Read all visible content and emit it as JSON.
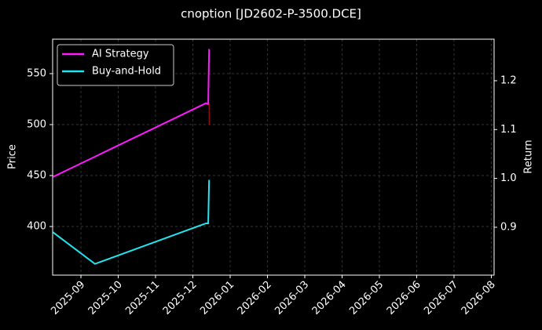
{
  "chart_data": {
    "type": "line",
    "title": "cnoption [JD2602-P-3500.DCE]",
    "y_label": "Price",
    "y2_label": "Return",
    "xlim": [
      2025.6035,
      2026.5895
    ],
    "xticks": [
      {
        "value": 2025.6667,
        "label": "2025-09"
      },
      {
        "value": 2025.75,
        "label": "2025-10"
      },
      {
        "value": 2025.8333,
        "label": "2025-11"
      },
      {
        "value": 2025.9167,
        "label": "2025-12"
      },
      {
        "value": 2026.0,
        "label": "2026-01"
      },
      {
        "value": 2026.0833,
        "label": "2026-02"
      },
      {
        "value": 2026.1667,
        "label": "2026-03"
      },
      {
        "value": 2026.25,
        "label": "2026-04"
      },
      {
        "value": 2026.3333,
        "label": "2026-05"
      },
      {
        "value": 2026.4167,
        "label": "2026-06"
      },
      {
        "value": 2026.5,
        "label": "2026-07"
      },
      {
        "value": 2026.5833,
        "label": "2026-08"
      }
    ],
    "ylim": [
      352.3,
      583.8
    ],
    "yticks": [
      400,
      450,
      500,
      550
    ],
    "y2lim": [
      0.802,
      1.285
    ],
    "y2ticks": [
      0.9,
      {
        "value": 1,
        "label": "1.0"
      },
      1.1,
      1.2
    ],
    "grid": true,
    "legend": "upper left",
    "series": [
      {
        "name": "AI Strategy",
        "color": "#ff1aff",
        "axis": "y2",
        "x": [
          2025.604,
          2025.946,
          2025.951,
          2025.953
        ],
        "values": [
          1.003,
          1.154,
          1.152,
          1.265
        ]
      },
      {
        "name": "Buy-and-Hold",
        "color": "#22e5f0",
        "axis": "y2",
        "x": [
          2025.604,
          2025.698,
          2025.946,
          2025.951,
          2025.953
        ],
        "values": [
          0.89,
          0.825,
          0.908,
          0.908,
          0.997
        ]
      },
      {
        "color": "#cc1111",
        "x": [
          2025.953,
          2025.953
        ],
        "values": [
          521,
          500
        ]
      }
    ]
  }
}
